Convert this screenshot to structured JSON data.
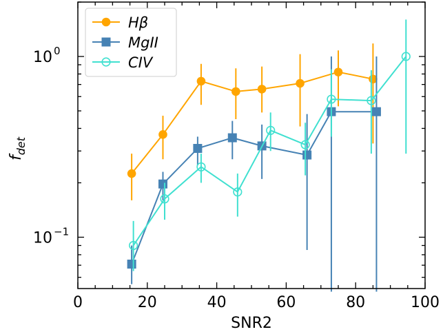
{
  "chart_data": {
    "type": "scatter",
    "xlabel": "SNR2",
    "ylabel_main": "f",
    "ylabel_sub": "det",
    "xlim": [
      0,
      100
    ],
    "ylim": [
      0.052,
      2.0
    ],
    "yscale": "log",
    "x_ticks": [
      0,
      20,
      40,
      60,
      80,
      100
    ],
    "x_tick_labels": [
      "0",
      "20",
      "40",
      "60",
      "80",
      "100"
    ],
    "y_major_ticks": [
      0.1,
      1.0
    ],
    "y_tick_labels": [
      {
        "base": "10",
        "exp": "−1"
      },
      {
        "base": "10",
        "exp": "0"
      }
    ],
    "grid": false,
    "legend_position": "top-left",
    "series": [
      {
        "name": "Hβ",
        "color": "#FFA500",
        "marker": "circle-filled",
        "x": [
          15.5,
          24.5,
          35.5,
          45.5,
          53,
          64,
          75,
          85
        ],
        "y": [
          0.225,
          0.37,
          0.73,
          0.64,
          0.66,
          0.71,
          0.82,
          0.75
        ],
        "yerr_low": [
          0.16,
          0.27,
          0.54,
          0.45,
          0.49,
          0.41,
          0.53,
          0.33
        ],
        "yerr_high": [
          0.29,
          0.47,
          0.91,
          0.86,
          0.88,
          1.03,
          1.08,
          1.18
        ]
      },
      {
        "name": "MgII",
        "color": "#4682B4",
        "marker": "square-filled",
        "x": [
          15.5,
          24.5,
          34.5,
          44.5,
          53,
          66,
          73,
          86
        ],
        "y": [
          0.071,
          0.197,
          0.31,
          0.355,
          0.32,
          0.285,
          0.495,
          0.495
        ],
        "yerr_low": [
          0.055,
          0.16,
          0.25,
          0.27,
          0.21,
          0.085,
          0.05,
          0.05
        ],
        "yerr_high": [
          0.09,
          0.23,
          0.36,
          0.44,
          0.42,
          0.48,
          1.0,
          1.0
        ]
      },
      {
        "name": "CIV",
        "color": "#40E0D0",
        "marker": "circle-open",
        "x": [
          16,
          25,
          35.5,
          46,
          55.5,
          65.5,
          73,
          84.5,
          94.5
        ],
        "y": [
          0.09,
          0.163,
          0.245,
          0.178,
          0.39,
          0.325,
          0.58,
          0.57,
          1.0
        ],
        "yerr_low": [
          0.065,
          0.125,
          0.2,
          0.13,
          0.3,
          0.22,
          0.36,
          0.29,
          0.29
        ],
        "yerr_high": [
          0.123,
          0.2,
          0.29,
          0.225,
          0.49,
          0.43,
          0.85,
          0.84,
          1.6
        ]
      }
    ]
  }
}
